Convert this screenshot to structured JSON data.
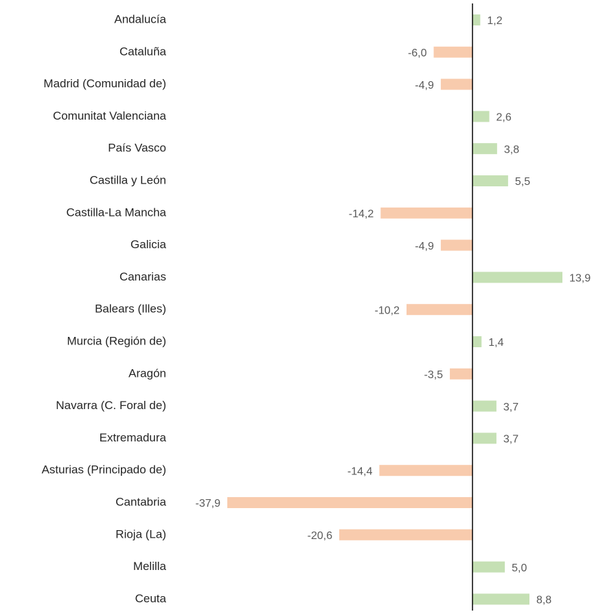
{
  "chart_data": {
    "type": "barh",
    "categories": [
      "Andalucía",
      "Cataluña",
      "Madrid (Comunidad de)",
      "Comunitat Valenciana",
      "País Vasco",
      "Castilla y León",
      "Castilla-La Mancha",
      "Galicia",
      "Canarias",
      "Balears (Illes)",
      "Murcia (Región de)",
      "Aragón",
      "Navarra (C. Foral de)",
      "Extremadura",
      "Asturias (Principado de)",
      "Cantabria",
      "Rioja (La)",
      "Melilla",
      "Ceuta"
    ],
    "values": [
      1.2,
      -6.0,
      -4.9,
      2.6,
      3.8,
      5.5,
      -14.2,
      -4.9,
      13.9,
      -10.2,
      1.4,
      -3.5,
      3.7,
      3.7,
      -14.4,
      -37.9,
      -20.6,
      5.0,
      8.8
    ],
    "value_labels": [
      "1,2",
      "-6,0",
      "-4,9",
      "2,6",
      "3,8",
      "5,5",
      "-14,2",
      "-4,9",
      "13,9",
      "-10,2",
      "1,4",
      "-3,5",
      "3,7",
      "3,7",
      "-14,4",
      "-37,9",
      "-20,6",
      "5,0",
      "8,8"
    ],
    "color": "#c5e0b4",
    "negative_color": "#f8cbad"
  }
}
